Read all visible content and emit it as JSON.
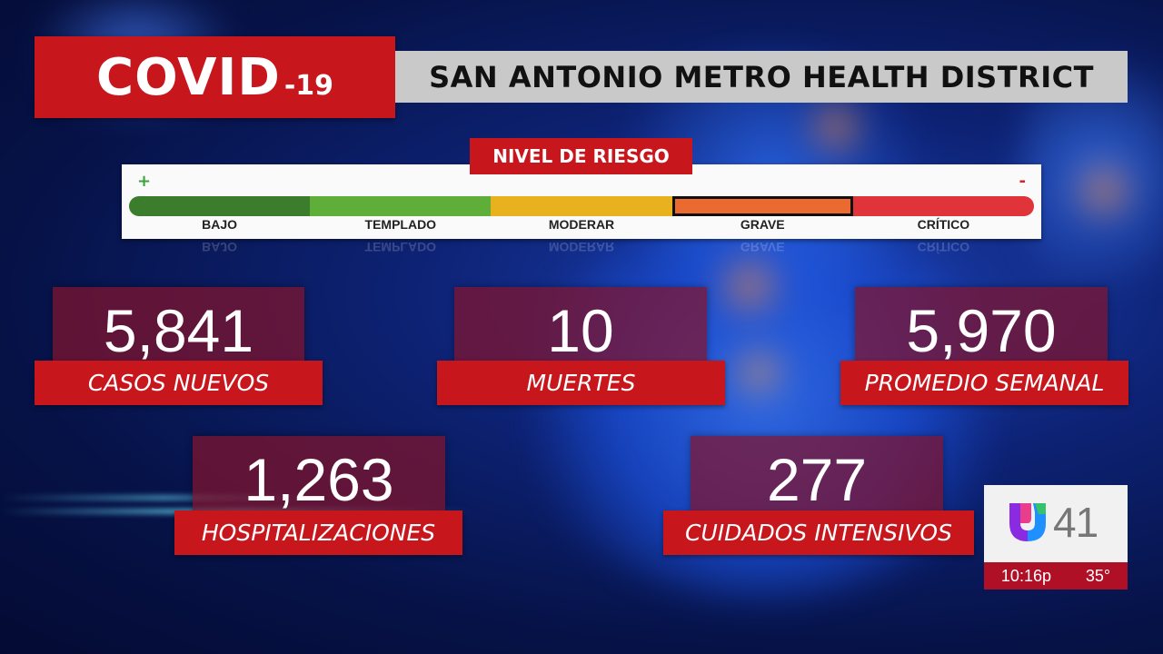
{
  "header": {
    "title_main": "COVID",
    "title_suffix": "-19",
    "district": "SAN ANTONIO METRO HEALTH DISTRICT"
  },
  "risk": {
    "title": "NIVEL DE RIESGO",
    "plus": "+",
    "minus": "-",
    "levels": [
      "BAJO",
      "TEMPLADO",
      "MODERAR",
      "GRAVE",
      "CRÍTICO"
    ],
    "level_colors": [
      "#3b7d2c",
      "#5fae3a",
      "#e7b21e",
      "#ea6a30",
      "#e0343a"
    ],
    "selected_level": "GRAVE"
  },
  "stats": {
    "new_cases": {
      "value": "5,841",
      "label": "CASOS NUEVOS"
    },
    "deaths": {
      "value": "10",
      "label": "MUERTES"
    },
    "weekly_avg": {
      "value": "5,970",
      "label": "PROMEDIO SEMANAL"
    },
    "hospitalizations": {
      "value": "1,263",
      "label": "HOSPITALIZACIONES"
    },
    "icu": {
      "value": "277",
      "label": "CUIDADOS INTENSIVOS"
    }
  },
  "station": {
    "logo_icon": "univision-logo-icon",
    "channel": "41",
    "time": "10:16p",
    "temperature": "35°"
  },
  "colors": {
    "accent_red": "#c8161d",
    "banner_gray": "#c9c9c9",
    "stat_box": "#82142d"
  }
}
